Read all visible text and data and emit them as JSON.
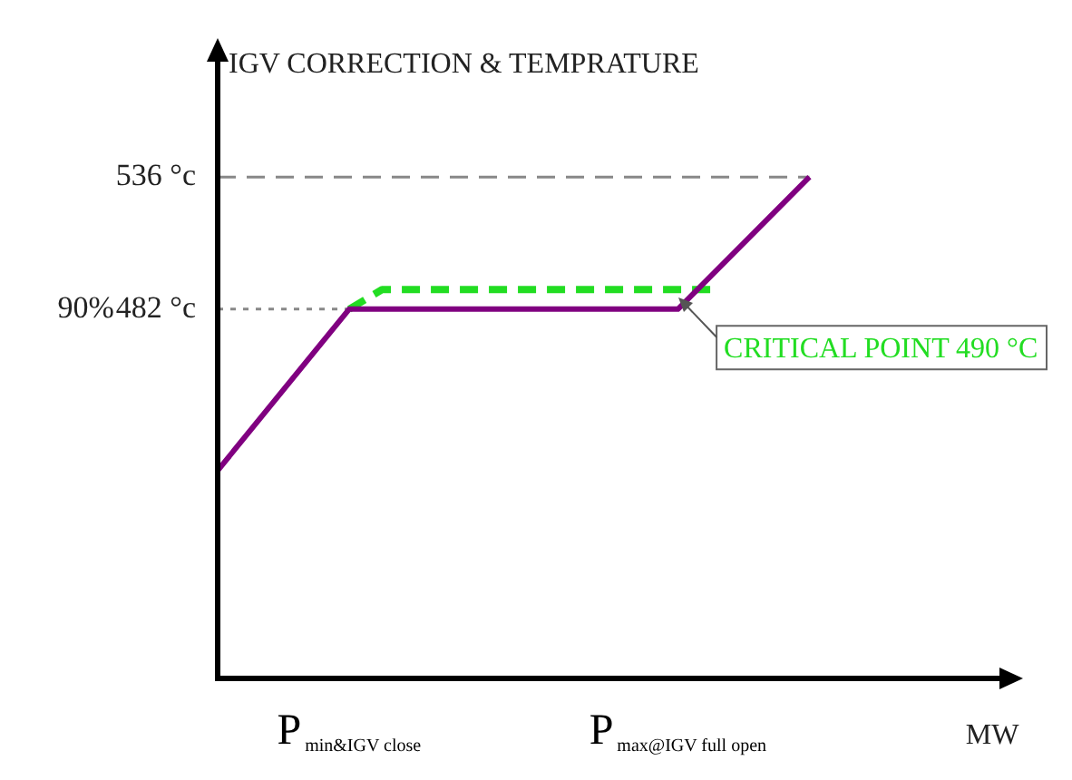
{
  "chart_data": {
    "type": "line",
    "title": "IGV CORRECTION & TEMPRATURE",
    "xlabel": "MW",
    "categories": [
      null,
      null,
      null,
      null,
      "P$_{min&IGV close}$",
      null,
      null,
      null,
      null,
      null,
      null,
      null,
      null,
      null,
      "P$_{max@IGV full open}$",
      null,
      null,
      null,
      null,
      null,
      null,
      null,
      null,
      null,
      null
    ],
    "ylim": [
      331,
      586
    ],
    "yticks": [
      {
        "value": 482,
        "label": "482 °c"
      },
      {
        "value": 536,
        "label": "536 °c"
      }
    ],
    "series": [
      {
        "color": "#800080",
        "values": [
          416,
          null,
          null,
          null,
          482,
          null,
          null,
          null,
          null,
          null,
          null,
          null,
          null,
          null,
          482,
          null,
          null,
          null,
          536,
          null,
          null,
          null,
          null,
          null,
          null
        ]
      },
      {
        "color": "#22dd22",
        "line_style": "dashed",
        "values": [
          null,
          null,
          null,
          null,
          482,
          490,
          null,
          null,
          null,
          null,
          null,
          null,
          null,
          null,
          null,
          490,
          null,
          null,
          null,
          null,
          null,
          null,
          null,
          null,
          null
        ]
      }
    ],
    "ref_lines": [
      {
        "axis": "y",
        "value": 536,
        "line_style": "dashed",
        "color": "#888888"
      },
      {
        "axis": "y",
        "value": 482,
        "line_style": "dotted",
        "color": "#888888"
      }
    ],
    "annotations": [
      "90%",
      "CRITICAL POINT 490 °C"
    ]
  }
}
